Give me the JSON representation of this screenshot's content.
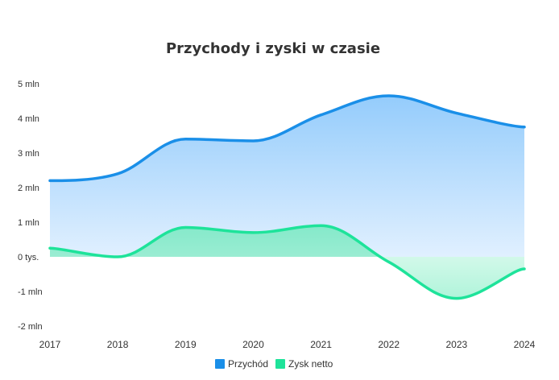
{
  "chart_data": {
    "type": "area",
    "title": "Przychody i zyski w czasie",
    "xlabel": "",
    "ylabel": "",
    "x": [
      "2017",
      "2018",
      "2019",
      "2020",
      "2021",
      "2022",
      "2023",
      "2024"
    ],
    "ylim": [
      -2000000,
      5000000
    ],
    "y_ticks": [
      {
        "value": 5000000,
        "label": "5 mln"
      },
      {
        "value": 4000000,
        "label": "4 mln"
      },
      {
        "value": 3000000,
        "label": "3 mln"
      },
      {
        "value": 2000000,
        "label": "2 mln"
      },
      {
        "value": 1000000,
        "label": "1 mln"
      },
      {
        "value": 0,
        "label": "0 tys."
      },
      {
        "value": -1000000,
        "label": "-1 mln"
      },
      {
        "value": -2000000,
        "label": "-2 mln"
      }
    ],
    "grid": false,
    "legend_position": "bottom-center",
    "series": [
      {
        "name": "Przychód",
        "color": "#1a8fe8",
        "values": [
          2200000,
          2400000,
          3400000,
          3350000,
          4100000,
          4650000,
          4150000,
          3750000
        ]
      },
      {
        "name": "Zysk netto",
        "color": "#1ee39a",
        "values": [
          250000,
          0,
          850000,
          700000,
          900000,
          -150000,
          -1200000,
          -350000
        ]
      }
    ]
  }
}
